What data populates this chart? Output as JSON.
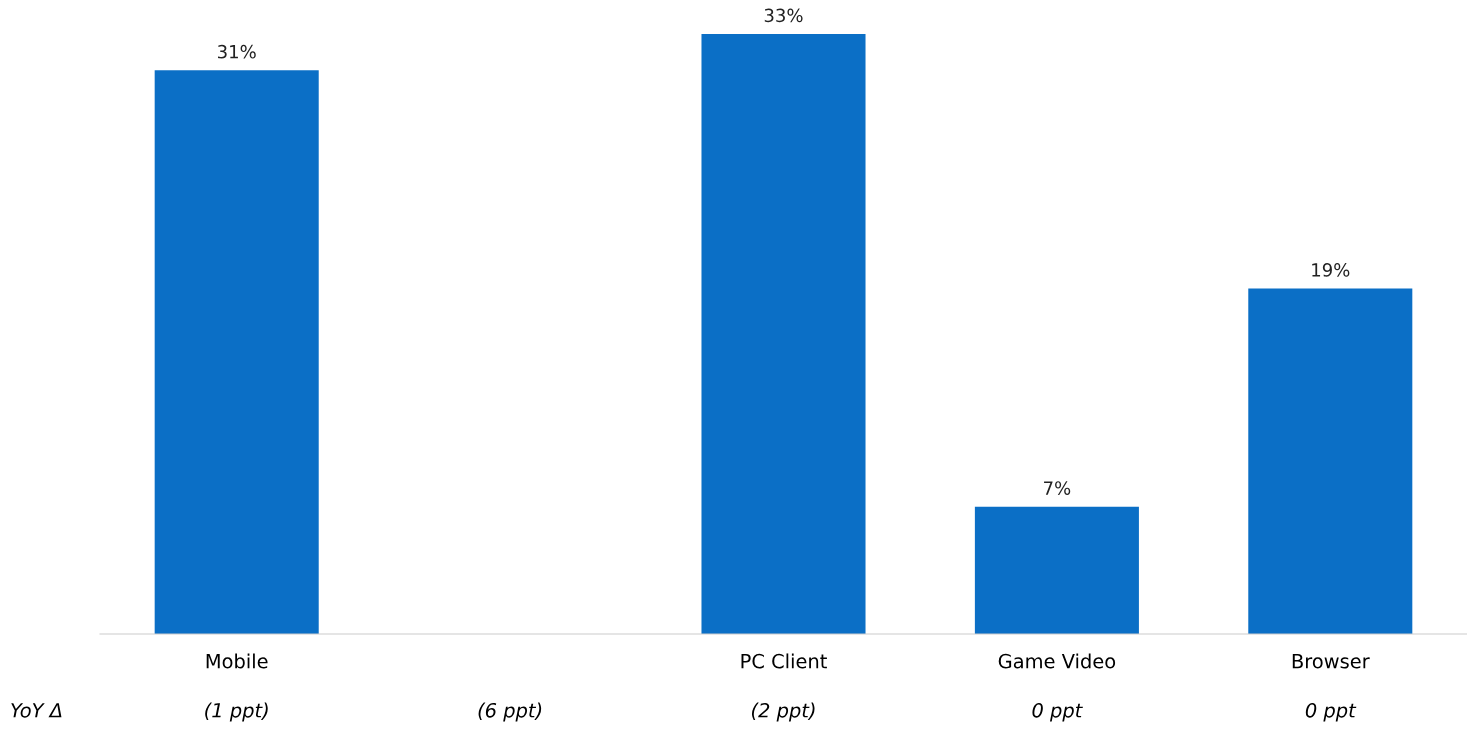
{
  "chart_data": {
    "type": "bar",
    "categories": [
      "Mobile",
      null,
      "PC Client",
      "Game Video",
      "Browser"
    ],
    "values": [
      31,
      null,
      33,
      7,
      19
    ],
    "color": "#0b6fc6",
    "value_labels": [
      "31%",
      null,
      "33%",
      "7%",
      "19%"
    ],
    "grid": false,
    "legend": false,
    "tick_labels": "x",
    "annotations": [
      "YoY Δ",
      "(1 ppt)",
      "(6 ppt)",
      "(2 ppt)",
      "0 ppt",
      "0 ppt"
    ]
  }
}
